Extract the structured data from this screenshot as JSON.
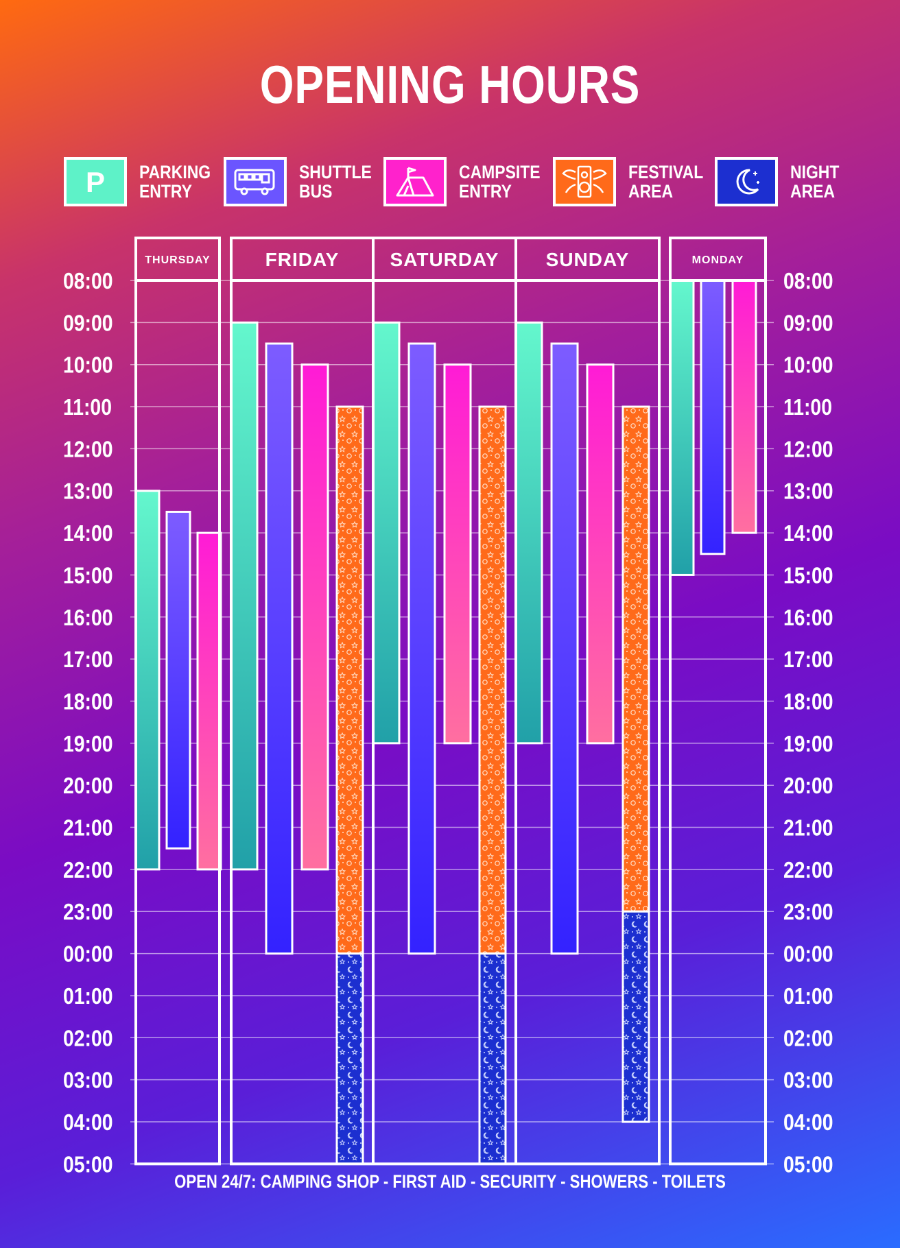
{
  "title": "OPENING HOURS",
  "legend": [
    {
      "key": "parking",
      "line1": "PARKING",
      "line2": "ENTRY",
      "color": "#5ef2c8",
      "icon": "parking-icon"
    },
    {
      "key": "shuttle",
      "line1": "SHUTTLE",
      "line2": "BUS",
      "color": "#6b55ff",
      "icon": "bus-icon"
    },
    {
      "key": "campsite",
      "line1": "CAMPSITE",
      "line2": "ENTRY",
      "color": "#ff22cc",
      "icon": "tent-icon"
    },
    {
      "key": "festival",
      "line1": "FESTIVAL",
      "line2": "AREA",
      "color": "#ff6a1a",
      "icon": "speaker-icon"
    },
    {
      "key": "night",
      "line1": "NIGHT",
      "line2": "AREA",
      "color": "#1c2fd0",
      "icon": "moon-icon"
    }
  ],
  "footer": "OPEN 24/7: CAMPING SHOP - FIRST AID - SECURITY - SHOWERS - TOILETS",
  "chart_data": {
    "type": "bar",
    "orientation": "vertical-time-ranges",
    "time_ticks": [
      "08:00",
      "09:00",
      "10:00",
      "11:00",
      "12:00",
      "13:00",
      "14:00",
      "15:00",
      "16:00",
      "17:00",
      "18:00",
      "19:00",
      "20:00",
      "21:00",
      "22:00",
      "23:00",
      "00:00",
      "01:00",
      "02:00",
      "03:00",
      "04:00",
      "05:00"
    ],
    "days": [
      {
        "name": "THURSDAY",
        "bars": [
          {
            "series": "parking",
            "start": "13:00",
            "end": "22:00"
          },
          {
            "series": "shuttle",
            "start": "13:30",
            "end": "21:30"
          },
          {
            "series": "campsite",
            "start": "14:00",
            "end": "22:00"
          }
        ]
      },
      {
        "name": "FRIDAY",
        "bars": [
          {
            "series": "parking",
            "start": "09:00",
            "end": "22:00"
          },
          {
            "series": "shuttle",
            "start": "09:30",
            "end": "00:00"
          },
          {
            "series": "campsite",
            "start": "10:00",
            "end": "22:00"
          },
          {
            "series": "festival",
            "start": "11:00",
            "end": "00:00"
          },
          {
            "series": "night",
            "start": "00:00",
            "end": "05:00"
          }
        ]
      },
      {
        "name": "SATURDAY",
        "bars": [
          {
            "series": "parking",
            "start": "09:00",
            "end": "19:00"
          },
          {
            "series": "shuttle",
            "start": "09:30",
            "end": "00:00"
          },
          {
            "series": "campsite",
            "start": "10:00",
            "end": "19:00"
          },
          {
            "series": "festival",
            "start": "11:00",
            "end": "00:00"
          },
          {
            "series": "night",
            "start": "00:00",
            "end": "05:00"
          }
        ]
      },
      {
        "name": "SUNDAY",
        "bars": [
          {
            "series": "parking",
            "start": "09:00",
            "end": "19:00"
          },
          {
            "series": "shuttle",
            "start": "09:30",
            "end": "00:00"
          },
          {
            "series": "campsite",
            "start": "10:00",
            "end": "19:00"
          },
          {
            "series": "festival",
            "start": "11:00",
            "end": "23:00"
          },
          {
            "series": "night",
            "start": "23:00",
            "end": "04:00"
          }
        ]
      },
      {
        "name": "MONDAY",
        "bars": [
          {
            "series": "parking",
            "start": "08:00",
            "end": "15:00"
          },
          {
            "series": "shuttle",
            "start": "08:00",
            "end": "14:30"
          },
          {
            "series": "campsite",
            "start": "08:00",
            "end": "14:00"
          }
        ]
      }
    ],
    "grid": true
  }
}
